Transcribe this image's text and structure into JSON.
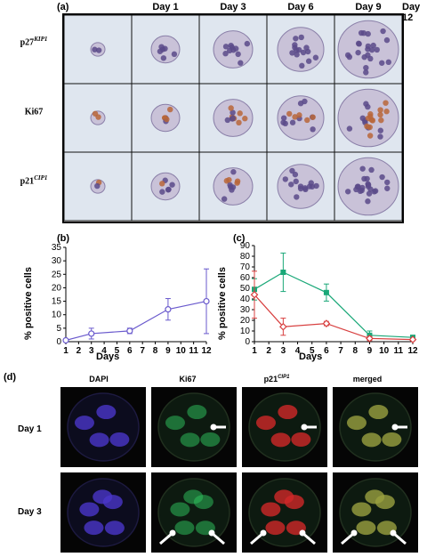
{
  "panel_a": {
    "label": "(a)",
    "days": [
      "Day 1",
      "Day 3",
      "Day 6",
      "Day 9",
      "Day 12"
    ],
    "rows": [
      {
        "main": "p27",
        "sup": "KIP1"
      },
      {
        "main": "Ki67",
        "sup": ""
      },
      {
        "main": "p21",
        "sup": "CIP1"
      }
    ],
    "colors": {
      "background": "#dfe6ef",
      "nucleus": "#5a4a8a",
      "stain": "#b8663a"
    }
  },
  "panel_b": {
    "label": "(b)",
    "yaxis_label": "% positive cells",
    "xaxis_label": "Days"
  },
  "panel_c": {
    "label": "(c)",
    "yaxis_label": "% positive cells",
    "xaxis_label": "Days"
  },
  "panel_d": {
    "label": "(d)",
    "columns": [
      {
        "main": "DAPI",
        "sup": ""
      },
      {
        "main": "Ki67",
        "sup": ""
      },
      {
        "main": "p21",
        "sup": "CIP1"
      },
      {
        "main": "merged",
        "sup": ""
      }
    ],
    "rows": [
      "Day 1",
      "Day 3"
    ],
    "colors": {
      "dapi": "#4a36c8",
      "ki67": "#2fc860",
      "p21": "#d02828",
      "merged": "#9aa040"
    }
  },
  "chart_data": [
    {
      "type": "line",
      "id": "b",
      "x": [
        1,
        3,
        6,
        9,
        12
      ],
      "series": [
        {
          "values": [
            0.5,
            3,
            4,
            12,
            15
          ],
          "err": [
            0.5,
            2,
            1,
            4,
            12
          ],
          "color": "#6a5acd"
        }
      ],
      "ylabel": "% positive cells",
      "xlabel": "Days",
      "ylim": [
        0,
        35
      ],
      "yticks": [
        0,
        5,
        10,
        15,
        20,
        25,
        30,
        35
      ],
      "xticks": [
        1,
        2,
        3,
        4,
        5,
        6,
        7,
        8,
        9,
        10,
        11,
        12
      ]
    },
    {
      "type": "line",
      "id": "c",
      "x": [
        1,
        3,
        6,
        9,
        12
      ],
      "series": [
        {
          "values": [
            49,
            65,
            46,
            6,
            4
          ],
          "err": [
            10,
            18,
            8,
            4,
            2
          ],
          "color": "#1aa878",
          "marker": "square"
        },
        {
          "values": [
            44,
            14,
            17,
            3,
            2
          ],
          "err": [
            22,
            8,
            2,
            2,
            1
          ],
          "color": "#d84040",
          "marker": "diamond"
        }
      ],
      "ylabel": "% positive cells",
      "xlabel": "Days",
      "ylim": [
        0,
        90
      ],
      "yticks": [
        0,
        10,
        20,
        30,
        40,
        50,
        60,
        70,
        80,
        90
      ],
      "xticks": [
        1,
        2,
        3,
        4,
        5,
        6,
        7,
        8,
        9,
        10,
        11,
        12
      ]
    }
  ]
}
